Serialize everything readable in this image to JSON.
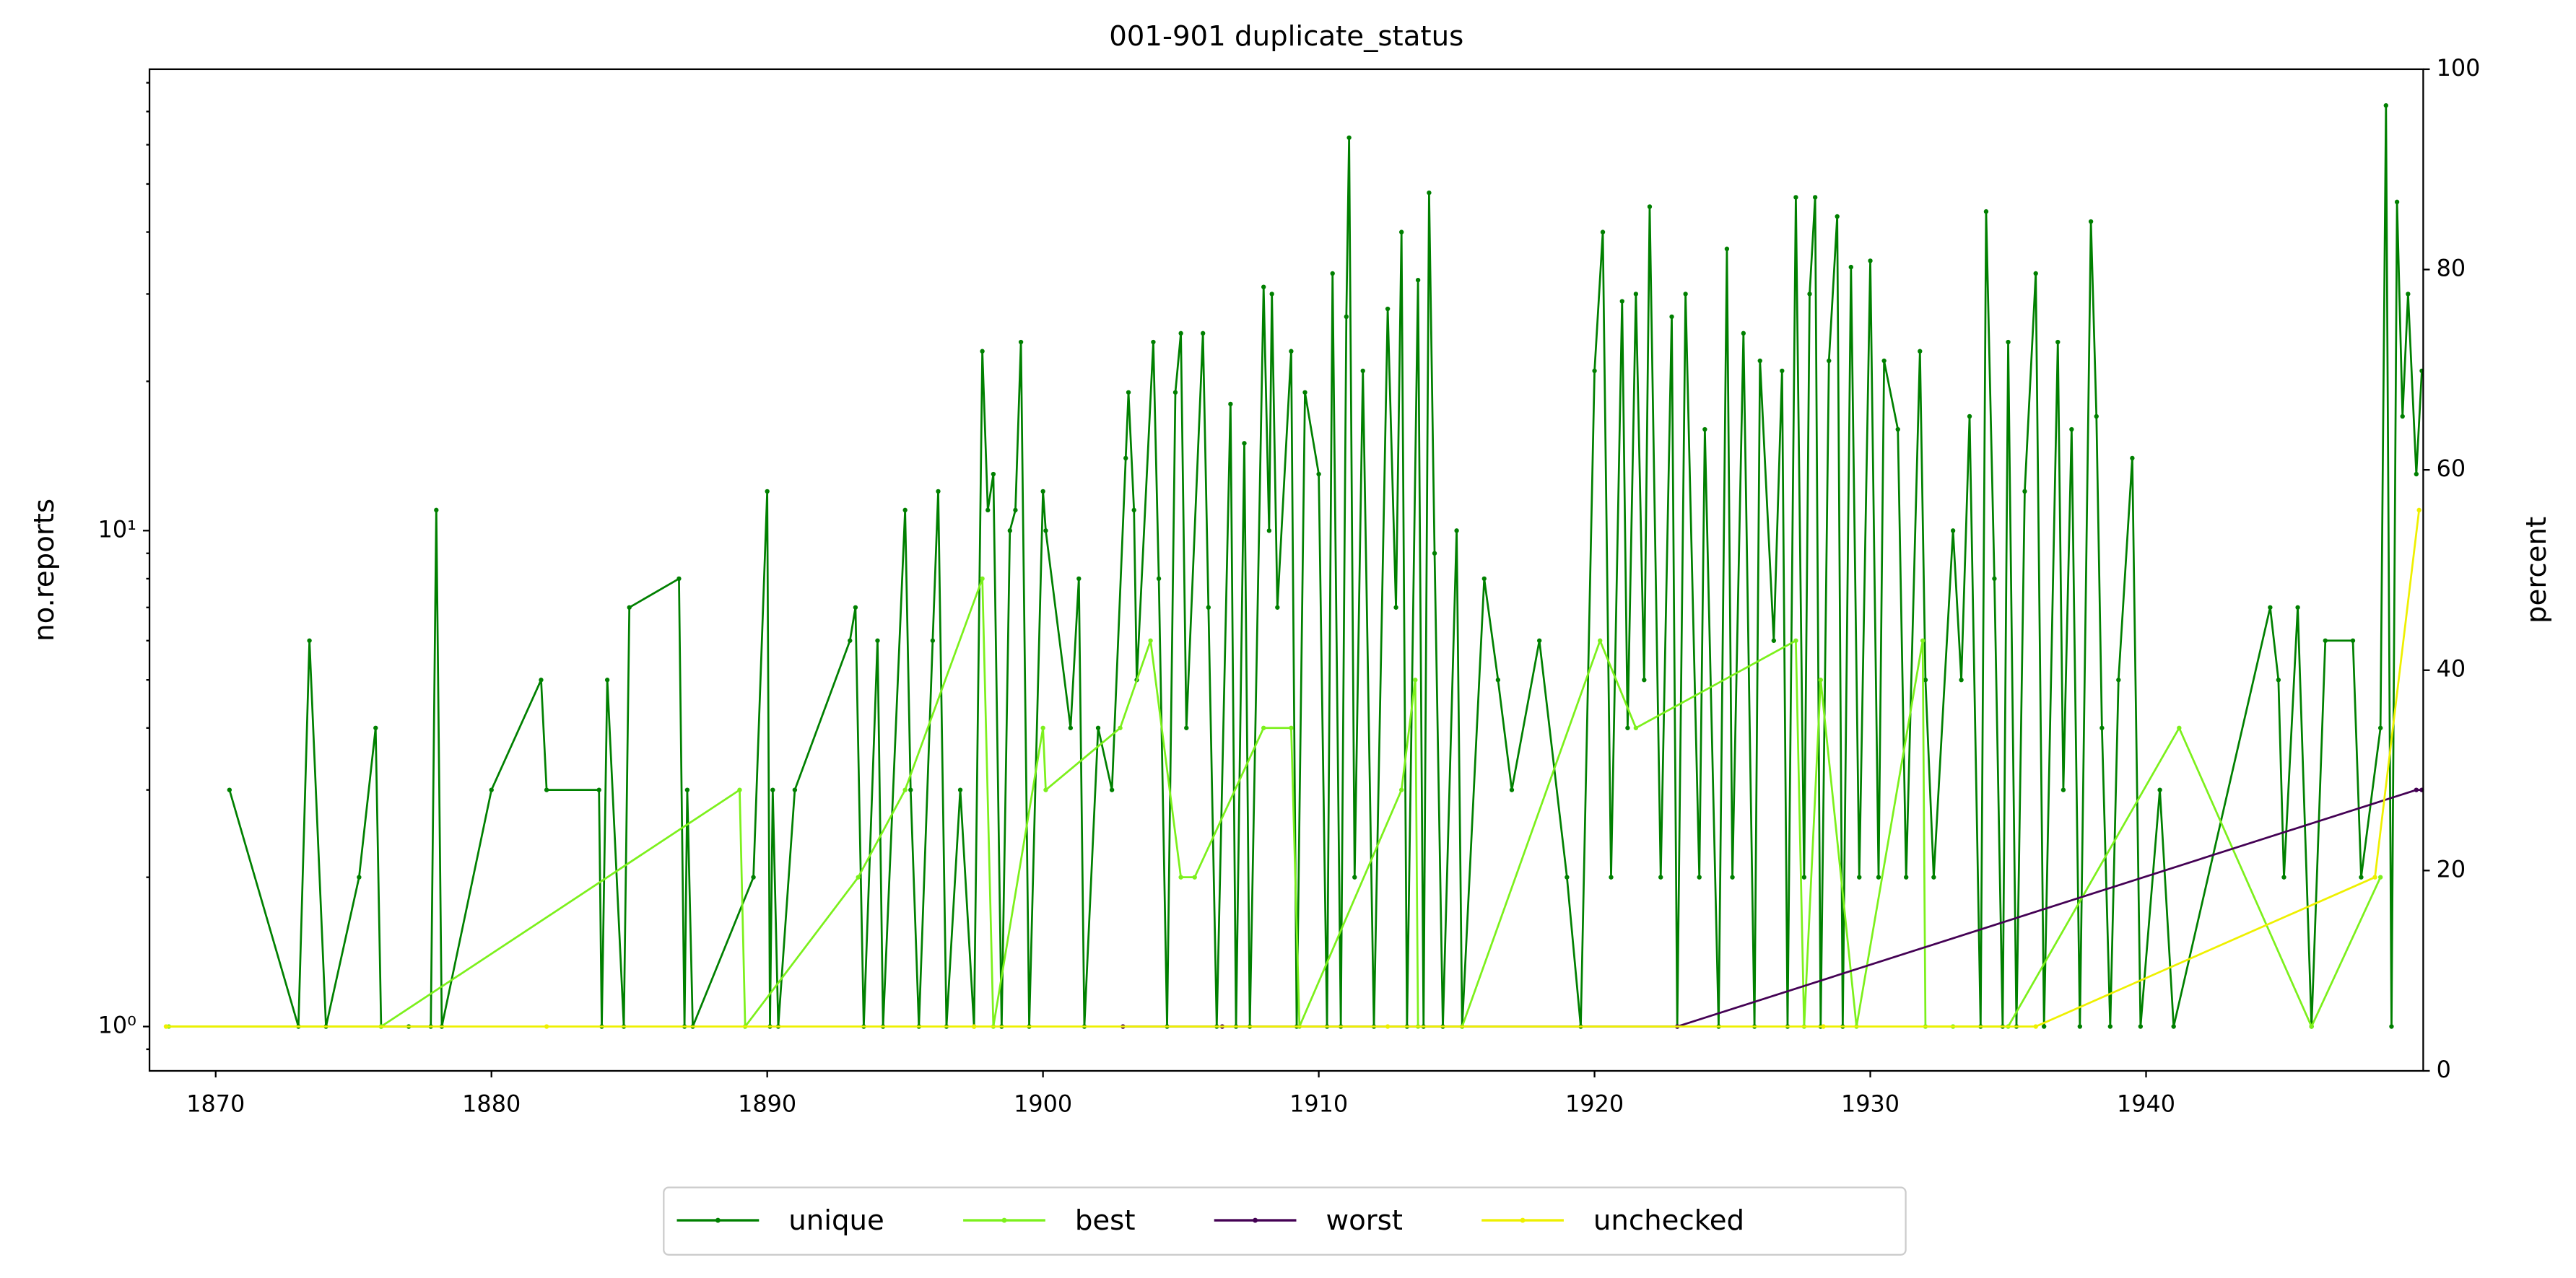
{
  "chart_data": {
    "type": "line",
    "title": "001-901 duplicate_status",
    "ylabel": "no.reports",
    "y2label": "percent",
    "yscale": "log",
    "xlim": [
      1867.6,
      1950.05
    ],
    "xticks": [
      1870,
      1880,
      1890,
      1900,
      1910,
      1920,
      1930,
      1940
    ],
    "ylim": [
      0.814,
      85.2
    ],
    "yticks": [
      {
        "value": 1,
        "label": "10⁰"
      },
      {
        "value": 10,
        "label": "10¹"
      }
    ],
    "y2lim": [
      0,
      100
    ],
    "y2ticks": [
      0,
      20,
      40,
      60,
      80,
      100
    ],
    "legend": "bottom",
    "series": [
      {
        "name": "unique",
        "color": "#008000",
        "x": [
          1870.5,
          1873,
          1873.4,
          1874,
          1875.2,
          1875.8,
          1876,
          1877,
          1877.8,
          1878,
          1878.2,
          1880,
          1881.8,
          1882,
          1883.9,
          1884,
          1884.2,
          1884.8,
          1885,
          1886.8,
          1887,
          1887.1,
          1887.3,
          1889.5,
          1890,
          1890.1,
          1890.2,
          1890.4,
          1891,
          1893,
          1893.2,
          1893.5,
          1894,
          1894.2,
          1895,
          1895.2,
          1895.5,
          1896,
          1896.2,
          1896.5,
          1897,
          1897.5,
          1897.8,
          1898,
          1898.2,
          1898.5,
          1898.8,
          1899,
          1899.2,
          1899.5,
          1900,
          1900.1,
          1901,
          1901.3,
          1901.5,
          1902,
          1902.5,
          1903,
          1903.1,
          1903.3,
          1903.4,
          1904,
          1904.2,
          1904.5,
          1904.8,
          1905,
          1905.2,
          1905.8,
          1906,
          1906.3,
          1906.8,
          1907,
          1907.3,
          1907.5,
          1908,
          1908.2,
          1908.3,
          1908.5,
          1909,
          1909.2,
          1909.5,
          1910,
          1910.3,
          1910.5,
          1910.8,
          1911,
          1911.1,
          1911.3,
          1911.6,
          1912,
          1912.5,
          1912.8,
          1913,
          1913.2,
          1913.6,
          1913.8,
          1914,
          1914.2,
          1914.5,
          1915,
          1915.2,
          1916,
          1916.5,
          1917,
          1918,
          1919,
          1919.5,
          1920,
          1920.3,
          1920.6,
          1921,
          1921.2,
          1921.5,
          1921.8,
          1922,
          1922.4,
          1922.8,
          1923,
          1923.3,
          1923.8,
          1924,
          1924.5,
          1924.8,
          1925,
          1925.4,
          1925.8,
          1926,
          1926.5,
          1926.8,
          1927,
          1927.3,
          1927.6,
          1927.8,
          1928,
          1928.2,
          1928.5,
          1928.8,
          1929,
          1929.3,
          1929.6,
          1930,
          1930.3,
          1930.5,
          1931,
          1931.3,
          1931.8,
          1932,
          1932.3,
          1933,
          1933.3,
          1933.6,
          1934,
          1934.2,
          1934.5,
          1934.8,
          1935,
          1935.3,
          1935.6,
          1936,
          1936.3,
          1936.8,
          1937,
          1937.3,
          1937.6,
          1938,
          1938.2,
          1938.4,
          1938.7,
          1939,
          1939.5,
          1939.8,
          1940.5,
          1941,
          1944.5,
          1944.8,
          1945,
          1945.5,
          1946,
          1946.5,
          1947.5,
          1947.8,
          1948.5,
          1948.7,
          1948.9,
          1949.1,
          1949.3,
          1949.5,
          1949.8,
          1950
        ],
        "values": [
          3,
          1,
          6,
          1,
          2,
          4,
          1,
          1,
          1,
          11,
          1,
          3,
          5,
          3,
          3,
          1,
          5,
          1,
          7,
          8,
          1,
          3,
          1,
          2,
          12,
          1,
          3,
          1,
          3,
          6,
          7,
          1,
          6,
          1,
          11,
          3,
          1,
          6,
          12,
          1,
          3,
          1,
          23,
          11,
          13,
          1,
          10,
          11,
          24,
          1,
          12,
          10,
          4,
          8,
          1,
          4,
          3,
          14,
          19,
          11,
          5,
          24,
          8,
          1,
          19,
          25,
          4,
          25,
          7,
          1,
          18,
          1,
          15,
          1,
          31,
          10,
          30,
          7,
          23,
          1,
          19,
          13,
          1,
          33,
          1,
          27,
          62,
          2,
          21,
          1,
          28,
          7,
          40,
          1,
          32,
          1,
          48,
          9,
          1,
          10,
          1,
          8,
          5,
          3,
          6,
          2,
          1,
          21,
          40,
          2,
          29,
          4,
          30,
          5,
          45,
          2,
          27,
          1,
          30,
          2,
          16,
          1,
          37,
          2,
          25,
          1,
          22,
          6,
          21,
          1,
          47,
          2,
          30,
          47,
          1,
          22,
          43,
          1,
          34,
          2,
          35,
          2,
          22,
          16,
          2,
          23,
          5,
          2,
          10,
          5,
          17,
          1,
          44,
          8,
          1,
          24,
          1,
          12,
          33,
          1,
          24,
          3,
          16,
          1,
          42,
          17,
          4,
          1,
          5,
          14,
          1,
          3,
          1,
          7,
          5,
          2,
          7,
          1,
          6,
          6,
          2,
          4,
          72,
          1,
          46,
          17,
          30,
          13,
          21
        ]
      },
      {
        "name": "best",
        "color": "#7cf01c",
        "x": [
          1868.3,
          1876,
          1889,
          1889.2,
          1893.3,
          1895,
          1897.8,
          1898.2,
          1900,
          1900.1,
          1902.8,
          1903.9,
          1905,
          1905.5,
          1908,
          1909,
          1909.3,
          1913,
          1913.5,
          1913.6,
          1915.2,
          1920.2,
          1921.5,
          1927.3,
          1927.6,
          1928.2,
          1929.5,
          1931.9,
          1932,
          1933,
          1935,
          1941.2,
          1946,
          1948.5
        ],
        "values": [
          1,
          1,
          3,
          1,
          2,
          3,
          8,
          1,
          4,
          3,
          4,
          6,
          2,
          2,
          4,
          4,
          1,
          3,
          5,
          1,
          1,
          6,
          4,
          6,
          1,
          5,
          1,
          6,
          1,
          1,
          1,
          4,
          1,
          2
        ]
      },
      {
        "name": "worst",
        "color": "#440154",
        "x": [
          1902.9,
          1906.5,
          1923,
          1949.8,
          1950
        ],
        "values": [
          1,
          1,
          1,
          3,
          3
        ]
      },
      {
        "name": "unchecked",
        "color": "#eef000",
        "x": [
          1868.2,
          1882,
          1897.5,
          1912.5,
          1928.3,
          1936,
          1948.3,
          1949.9
        ],
        "values": [
          1,
          1,
          1,
          1,
          1,
          1,
          2,
          11
        ]
      }
    ]
  }
}
